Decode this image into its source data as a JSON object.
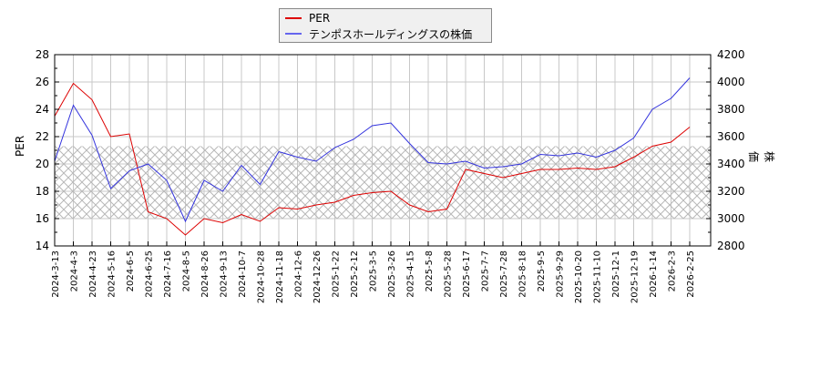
{
  "legend": {
    "per_label": "PER",
    "price_label": "テンポスホールディングスの株価",
    "per_color": "#dd0000",
    "price_color": "#3333dd"
  },
  "axes": {
    "left_label": "PER",
    "right_label": "株価"
  },
  "chart_data": {
    "type": "line",
    "title": "",
    "xlabel": "",
    "ylabel": "PER",
    "ylabel_right": "株価",
    "ylim": [
      14,
      28
    ],
    "ylim_right": [
      2800,
      4200
    ],
    "yticks": [
      14,
      16,
      18,
      20,
      22,
      24,
      26,
      28
    ],
    "yticks_right": [
      2800,
      3000,
      3200,
      3400,
      3600,
      3800,
      4000,
      4200
    ],
    "grid": true,
    "legend_position": "top-center",
    "shaded_band": {
      "per_range": [
        16.0,
        21.3
      ],
      "style": "crosshatch",
      "color": "#bbbbbb"
    },
    "categories": [
      "2024-3-13",
      "2024-4-3",
      "2024-4-23",
      "2024-5-16",
      "2024-6-5",
      "2024-6-25",
      "2024-7-16",
      "2024-8-5",
      "2024-8-26",
      "2024-9-13",
      "2024-10-7",
      "2024-10-28",
      "2024-11-18",
      "2024-12-6",
      "2024-12-26",
      "2025-1-22",
      "2025-2-12",
      "2025-3-5",
      "2025-3-26",
      "2025-4-15",
      "2025-5-8",
      "2025-5-28",
      "2025-6-17",
      "2025-7-7",
      "2025-7-28",
      "2025-8-18",
      "2025-9-5",
      "2025-9-29",
      "2025-10-20",
      "2025-11-10",
      "2025-12-1",
      "2025-12-19",
      "2026-1-14",
      "2026-2-3",
      "2026-2-25"
    ],
    "series": [
      {
        "name": "PER",
        "axis": "left",
        "color": "#dd0000",
        "values": [
          23.5,
          25.9,
          24.7,
          22.0,
          22.2,
          16.5,
          16.0,
          14.8,
          16.0,
          15.7,
          16.3,
          15.8,
          16.8,
          16.7,
          17.0,
          17.2,
          17.7,
          17.9,
          18.0,
          17.0,
          16.5,
          16.7,
          19.6,
          19.3,
          19.0,
          19.3,
          19.6,
          19.6,
          19.7,
          19.6,
          19.8,
          20.5,
          21.3,
          21.6,
          22.7
        ]
      },
      {
        "name": "テンポスホールディングスの株価",
        "axis": "right",
        "color": "#3333dd",
        "values": [
          3420,
          3830,
          3610,
          3220,
          3350,
          3400,
          3280,
          2980,
          3280,
          3200,
          3390,
          3250,
          3490,
          3450,
          3420,
          3520,
          3580,
          3680,
          3700,
          3550,
          3410,
          3400,
          3420,
          3370,
          3380,
          3400,
          3470,
          3460,
          3480,
          3450,
          3500,
          3590,
          3800,
          3880,
          4030
        ]
      }
    ]
  }
}
